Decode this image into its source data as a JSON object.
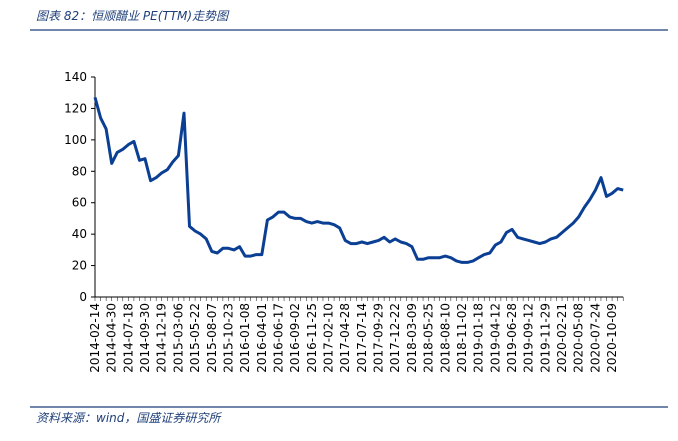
{
  "chart_data": {
    "type": "line",
    "title": "图表 82：恒顺醋业 PE(TTM)走势图",
    "source": "资料来源：wind，国盛证券研究所",
    "categories": [
      "2014-02-14",
      null,
      null,
      "2014-04-30",
      null,
      null,
      "2014-07-18",
      null,
      null,
      "2014-09-30",
      null,
      null,
      "2014-12-19",
      null,
      null,
      "2015-03-06",
      null,
      null,
      "2015-05-22",
      null,
      null,
      "2015-08-07",
      null,
      null,
      "2015-10-23",
      null,
      null,
      "2016-01-08",
      null,
      null,
      "2016-04-01",
      null,
      null,
      "2016-06-17",
      null,
      null,
      "2016-09-02",
      null,
      null,
      "2016-11-25",
      null,
      null,
      "2017-02-10",
      null,
      null,
      "2017-04-28",
      null,
      null,
      "2017-07-14",
      null,
      null,
      "2017-09-29",
      null,
      null,
      "2017-12-22",
      null,
      null,
      "2018-03-09",
      null,
      null,
      "2018-05-25",
      null,
      null,
      "2018-08-10",
      null,
      null,
      "2018-11-02",
      null,
      null,
      "2019-01-18",
      null,
      null,
      "2019-04-12",
      null,
      null,
      "2019-06-28",
      null,
      null,
      "2019-09-12",
      null,
      null,
      "2019-11-29",
      null,
      null,
      "2020-02-21",
      null,
      null,
      "2020-05-08",
      null,
      null,
      "2020-07-24",
      null,
      null,
      "2020-10-09",
      null,
      null
    ],
    "series": [
      {
        "name": "PE(TTM)",
        "color": "#0b3f94",
        "values": [
          127,
          114,
          107,
          85,
          92,
          94,
          97,
          99,
          87,
          88,
          74,
          76,
          79,
          81,
          86,
          90,
          117,
          45,
          42,
          40,
          37,
          29,
          28,
          31,
          31,
          30,
          32,
          26,
          26,
          27,
          27,
          49,
          51,
          54,
          54,
          51,
          50,
          50,
          48,
          47,
          48,
          47,
          47,
          46,
          44,
          36,
          34,
          34,
          35,
          34,
          35,
          36,
          38,
          35,
          37,
          35,
          34,
          32,
          24,
          24,
          25,
          25,
          25,
          26,
          25,
          23,
          22,
          22,
          23,
          25,
          27,
          28,
          33,
          35,
          41,
          43,
          38,
          37,
          36,
          35,
          34,
          35,
          37,
          38,
          41,
          44,
          47,
          51,
          57,
          62,
          68,
          76,
          64,
          66,
          69,
          68
        ]
      }
    ],
    "ylim": [
      0,
      140
    ],
    "yticks": [
      0,
      20,
      40,
      60,
      80,
      100,
      120,
      140
    ]
  }
}
